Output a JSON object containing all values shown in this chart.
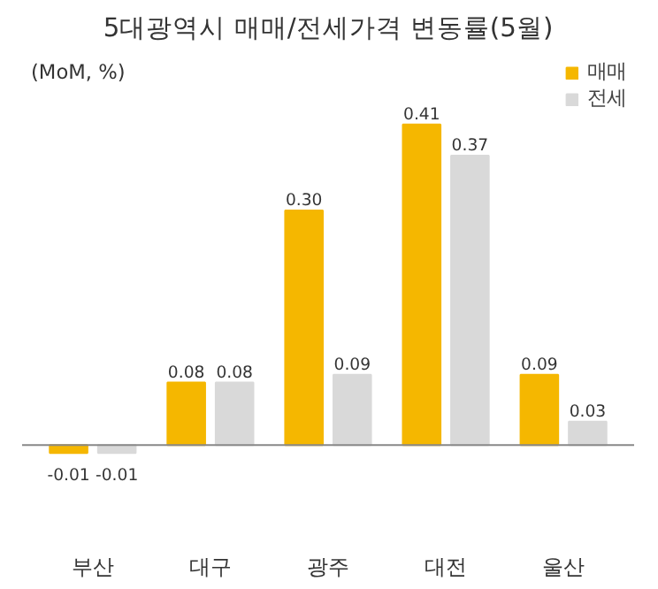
{
  "chart_data": {
    "type": "bar",
    "title": "5대광역시 매매/전세가격 변동률(5월)",
    "ylabel": "(MoM, %)",
    "categories": [
      "부산",
      "대구",
      "광주",
      "대전",
      "울산"
    ],
    "series": [
      {
        "name": "매매",
        "color": "#f5b700",
        "values": [
          -0.01,
          0.08,
          0.3,
          0.41,
          0.09
        ],
        "value_labels": [
          "-0.01",
          "0.08",
          "0.30",
          "0.41",
          "0.09"
        ]
      },
      {
        "name": "전세",
        "color": "#d9d9d9",
        "values": [
          -0.01,
          0.08,
          0.09,
          0.37,
          0.03
        ],
        "value_labels": [
          "-0.01",
          "0.08",
          "0.09",
          "0.37",
          "0.03"
        ]
      }
    ],
    "legend": "top right",
    "grid": false
  }
}
